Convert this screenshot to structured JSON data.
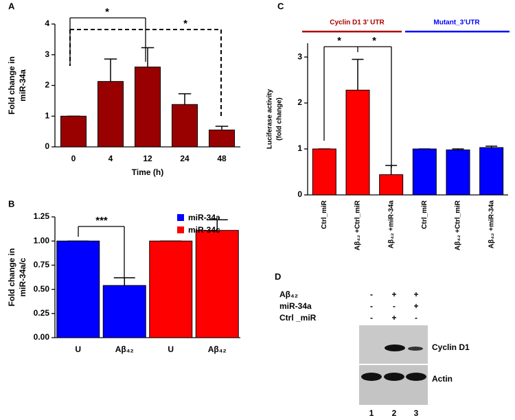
{
  "chart_data": [
    {
      "type": "bar",
      "panel": "A",
      "xlabel": "Time (h)",
      "ylabel": [
        "Fold change in",
        "miR-34a"
      ],
      "categories": [
        "0",
        "4",
        "12",
        "24",
        "48"
      ],
      "series": [
        {
          "color": "#990000",
          "values": [
            1.0,
            2.13,
            2.6,
            1.38,
            0.55
          ],
          "errors": [
            0,
            0.73,
            0.63,
            0.35,
            0.12
          ]
        }
      ],
      "ylim": [
        0,
        4
      ],
      "yticks": [
        0,
        1,
        2,
        3,
        4
      ],
      "annotations": [
        "*",
        "*"
      ]
    },
    {
      "type": "bar",
      "panel": "B",
      "ylabel": [
        "Fold change in",
        "miR-34a/c"
      ],
      "categories": [
        "U",
        "Aβ₄₂",
        "U",
        "Aβ₄₂"
      ],
      "series": [
        {
          "name": "miR-34a",
          "color": "#0000ff",
          "values": [
            1.0,
            0.54,
            null,
            null
          ],
          "errors": [
            0,
            0.08,
            null,
            null
          ]
        },
        {
          "name": "miR-34c",
          "color": "#ff0000",
          "values": [
            null,
            null,
            1.0,
            1.11
          ],
          "errors": [
            null,
            null,
            0,
            0.11
          ]
        }
      ],
      "ylim": [
        0,
        1.25
      ],
      "yticks": [
        {
          "value": 0,
          "label": "0.00"
        },
        {
          "value": 0.25,
          "label": "0.25"
        },
        {
          "value": 0.5,
          "label": "0.50"
        },
        {
          "value": 0.75,
          "label": "0.75"
        },
        {
          "value": 1,
          "label": "1.00"
        },
        {
          "value": 1.25,
          "label": "1.25"
        }
      ],
      "annotations": [
        "***"
      ]
    },
    {
      "type": "bar",
      "panel": "C",
      "ylabel": [
        "Luciferase  activity",
        "(fold change)"
      ],
      "categories": [
        "Ctrl_miR",
        "Aβ₄₂ +Ctrl_miR",
        "Aβ₄₂ +miR-34a",
        "Ctrl_miR",
        "Aβ₄₂ +Ctrl_miR",
        "Aβ₄₂ +miR-34a"
      ],
      "series": [
        {
          "name": "Cyclin D1 3’ UTR",
          "color": "#ff0000",
          "values": [
            1.0,
            2.28,
            0.44,
            null,
            null,
            null
          ],
          "errors": [
            0,
            0.67,
            0.2,
            null,
            null,
            null
          ]
        },
        {
          "name": "Mutant_3’UTR",
          "color": "#0000ff",
          "values": [
            null,
            null,
            null,
            1.0,
            0.98,
            1.03
          ],
          "errors": [
            null,
            null,
            null,
            0,
            0.02,
            0.03
          ]
        }
      ],
      "ylim": [
        0,
        3.3
      ],
      "yticks": [
        0,
        1,
        2,
        3
      ],
      "annotations": [
        "*",
        "*"
      ]
    }
  ],
  "blot": {
    "panel": "D",
    "rows": [
      {
        "label": "Aβ₄₂",
        "signs": [
          "-",
          "+",
          "+"
        ]
      },
      {
        "label": "miR-34a",
        "signs": [
          "-",
          "-",
          "+"
        ]
      },
      {
        "label": "Ctrl _miR",
        "signs": [
          "-",
          "+",
          "-"
        ]
      }
    ],
    "bands": [
      "Cyclin D1",
      "Actin"
    ],
    "lanes": [
      "1",
      "2",
      "3"
    ]
  }
}
